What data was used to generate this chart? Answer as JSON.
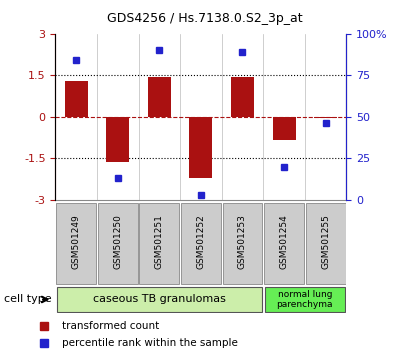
{
  "title": "GDS4256 / Hs.7138.0.S2_3p_at",
  "samples": [
    "GSM501249",
    "GSM501250",
    "GSM501251",
    "GSM501252",
    "GSM501253",
    "GSM501254",
    "GSM501255"
  ],
  "transformed_count": [
    1.3,
    -1.62,
    1.45,
    -2.2,
    1.42,
    -0.85,
    -0.05
  ],
  "percentile_rank": [
    84,
    13,
    90,
    3,
    89,
    20,
    46
  ],
  "bar_color": "#aa1111",
  "dot_color": "#2222cc",
  "ylim_left": [
    -3,
    3
  ],
  "ylim_right": [
    0,
    100
  ],
  "yticks_left": [
    -3,
    -1.5,
    0,
    1.5,
    3
  ],
  "yticks_right": [
    0,
    25,
    50,
    75,
    100
  ],
  "yticklabels_right": [
    "0",
    "25",
    "50",
    "75",
    "100%"
  ],
  "group1_label": "caseous TB granulomas",
  "group2_label": "normal lung\nparenchyma",
  "group1_color": "#cceeaa",
  "group2_color": "#66ee55",
  "cell_type_label": "cell type",
  "legend_bar_label": "transformed count",
  "legend_dot_label": "percentile rank within the sample",
  "label_box_color": "#cccccc",
  "label_box_edge": "#888888"
}
